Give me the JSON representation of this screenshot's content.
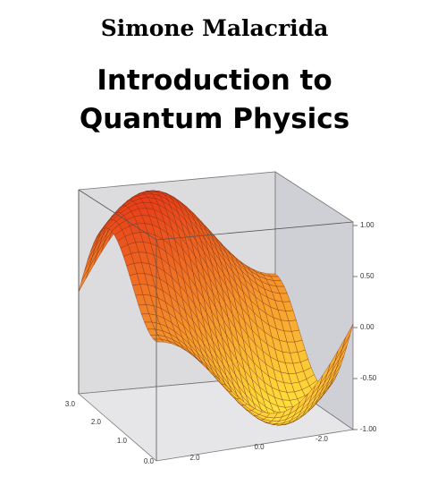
{
  "author": "Simone Malacrida",
  "title": [
    "Introduction to",
    "Quantum Physics"
  ],
  "plot": {
    "z_ticks": [
      "1.00",
      "0.50",
      "0.00",
      "-0.50",
      "-1.00"
    ],
    "y_ticks": [
      "3.0",
      "2.0",
      "1.0",
      "0.0"
    ],
    "x_ticks": [
      "2.0",
      "0.0",
      "-2.0"
    ]
  }
}
